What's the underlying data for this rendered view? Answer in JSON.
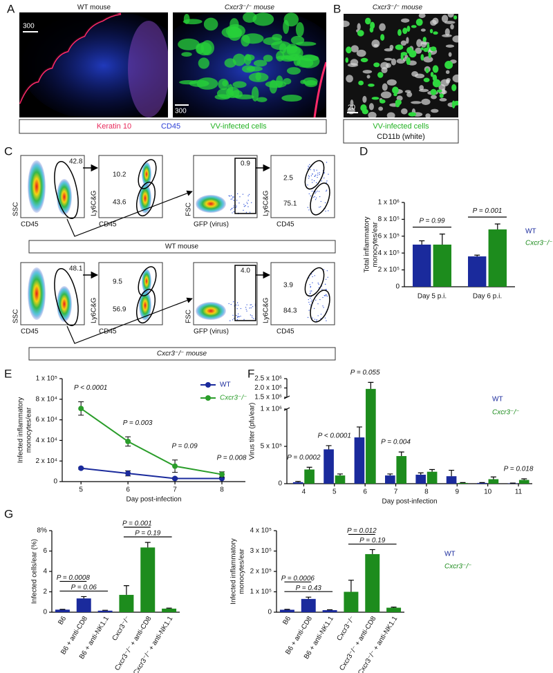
{
  "panel_labels": [
    "A",
    "B",
    "C",
    "D",
    "E",
    "F",
    "G"
  ],
  "panel_a": {
    "titles": [
      "WT mouse",
      "Cxcr3⁻/⁻ mouse"
    ],
    "scale_bars": [
      "300",
      "300"
    ],
    "legend": [
      "Keratin 10",
      "CD45",
      "VV-infected cells"
    ]
  },
  "panel_b": {
    "title": "Cxcr3⁻/⁻ mouse",
    "scale_bar": "20",
    "legend": [
      "VV-infected cells",
      "CD11b (white)"
    ]
  },
  "panel_c": {
    "axis_labels": {
      "ssc": "SSC",
      "cd45": "CD45",
      "ly6cg": "Ly6C&G",
      "fsc": "FSC",
      "gfp": "GFP (virus)"
    },
    "rows": [
      {
        "label": "WT mouse",
        "gates": [
          "42.8",
          "10.2",
          "43.6",
          "0.9",
          "2.5",
          "75.1"
        ]
      },
      {
        "label": "Cxcr3⁻/⁻ mouse",
        "gates": [
          "48.1",
          "9.5",
          "56.9",
          "4.0",
          "3.9",
          "84.3"
        ]
      }
    ]
  },
  "chart_data": [
    {
      "type": "bar",
      "categories": [
        "Day 5 p.i.",
        "Day 6 p.i."
      ],
      "ylabel": [
        "Total inflammatory",
        "monocytes/ear"
      ],
      "ylim": [
        0,
        1000000
      ],
      "yticks": [
        0,
        {
          "value": 200000,
          "label": "2 x 10⁵"
        },
        {
          "value": 400000,
          "label": "4 x 10⁵"
        },
        {
          "value": 600000,
          "label": "6 x 10⁵"
        },
        {
          "value": 800000,
          "label": "8 x 10⁵"
        },
        {
          "value": 1000000,
          "label": "1 x 10⁶"
        }
      ],
      "series": [
        {
          "name": "WT",
          "color": "#1a2a9c",
          "values": [
            500000,
            360000
          ],
          "errors": [
            45000,
            15000
          ]
        },
        {
          "name": "Cxcr3⁻/⁻",
          "color": "#1d8c1d",
          "values": [
            500000,
            680000
          ],
          "errors": [
            125000,
            65000
          ]
        }
      ],
      "annotations": [
        "P = 0.99",
        "P = 0.001"
      ],
      "brackets": true
    },
    {
      "type": "line",
      "x": [
        5,
        6,
        7,
        8
      ],
      "xlim": [
        4.6,
        8.5
      ],
      "xticks": [
        5,
        6,
        7,
        8
      ],
      "xlabel": "Day post-infection",
      "ylabel": [
        "Infected inflammatory",
        "monocytes/ear"
      ],
      "ylim": [
        0,
        100000
      ],
      "yticks": [
        0,
        {
          "value": 20000,
          "label": "2 x 10⁴"
        },
        {
          "value": 40000,
          "label": "4 x 10⁴"
        },
        {
          "value": 60000,
          "label": "6 x 10⁴"
        },
        {
          "value": 80000,
          "label": "8 x 10⁴"
        },
        {
          "value": 100000,
          "label": "1 x 10⁵"
        }
      ],
      "series": [
        {
          "name": "WT",
          "color": "#1a2a9c",
          "values": [
            13000,
            8000,
            3000,
            3000
          ],
          "errors": [
            1000,
            2500,
            1000,
            500
          ]
        },
        {
          "name": "Cxcr3⁻/⁻",
          "color": "#2a9d2a",
          "values": [
            71000,
            39000,
            15000,
            7000
          ],
          "errors": [
            6500,
            4500,
            6000,
            2500
          ]
        }
      ],
      "annotations": [
        "P < 0.0001",
        "P = 0.003",
        "P = 0.09",
        "P = 0.008"
      ]
    },
    {
      "type": "bar",
      "x": [
        4,
        5,
        6,
        7,
        8,
        9,
        10,
        11
      ],
      "xlim": [
        3.45,
        11.45
      ],
      "xticks": [
        4,
        5,
        6,
        7,
        8,
        9,
        10,
        11
      ],
      "xlabel": "Day post-infection",
      "ylabel": [
        "Virus titer (pfu/ear)"
      ],
      "ylim": [
        0,
        2500000
      ],
      "ybreak": [
        1000000,
        1500000
      ],
      "yticks": [
        0,
        {
          "value": 500000,
          "label": "5 x 10⁵"
        },
        {
          "value": 1000000,
          "label": "1 x 10⁶"
        },
        {
          "value": 1500000,
          "label": "1.5 x 10⁶"
        },
        {
          "value": 2000000,
          "label": "2.0 x 10⁶"
        },
        {
          "value": 2500000,
          "label": "2.5 x 10⁶"
        }
      ],
      "series": [
        {
          "name": "WT",
          "color": "#1a2a9c",
          "values": [
            20000,
            460000,
            620000,
            110000,
            120000,
            100000,
            10000,
            5000
          ],
          "errors": [
            10000,
            50000,
            140000,
            20000,
            25000,
            80000,
            5000,
            3000
          ]
        },
        {
          "name": "Cxcr3⁻/⁻",
          "color": "#1d8c1d",
          "values": [
            190000,
            110000,
            1950000,
            370000,
            160000,
            10000,
            60000,
            50000
          ],
          "errors": [
            30000,
            20000,
            350000,
            55000,
            30000,
            5000,
            30000,
            15000
          ]
        }
      ],
      "annotations": [
        "P = 0.0002",
        "P < 0.0001",
        "P = 0.055",
        "P = 0.004",
        null,
        null,
        null,
        "P = 0.018"
      ]
    },
    {
      "type": "bar",
      "categories": [
        "B6",
        "B6 + anti-CD8",
        "B6 + anti-NK1.1",
        "Cxcr3⁻/⁻",
        "Cxcr3⁻/⁻ + anti-CD8",
        "Cxcr3⁻/⁻ + anti-NK1.1"
      ],
      "ylabel": [
        "Infected cells/ear (%)"
      ],
      "ylim": [
        0,
        8
      ],
      "yticks": [
        0,
        2,
        4,
        6,
        {
          "value": 8,
          "label": "8%"
        }
      ],
      "values": [
        0.25,
        1.35,
        0.15,
        1.7,
        6.35,
        0.35
      ],
      "errors": [
        0.03,
        0.18,
        0.04,
        0.9,
        0.5,
        0.05
      ],
      "colors": [
        "#1a2a9c",
        "#1a2a9c",
        "#1a2a9c",
        "#1d8c1d",
        "#1d8c1d",
        "#1d8c1d"
      ],
      "comparisons": [
        {
          "label": "P = 0.0008",
          "between": [
            0,
            1
          ]
        },
        {
          "label": "P = 0.06",
          "between": [
            0,
            2
          ]
        },
        {
          "label": "P = 0.001",
          "between": [
            3,
            4
          ]
        },
        {
          "label": "P = 0.19",
          "between": [
            3,
            5
          ]
        }
      ]
    },
    {
      "type": "bar",
      "categories": [
        "B6",
        "B6 + anti-CD8",
        "B6 + anti-NK1.1",
        "Cxcr3⁻/⁻",
        "Cxcr3⁻/⁻ + anti-CD8",
        "Cxcr3⁻/⁻ + anti-NK1.1"
      ],
      "ylabel": [
        "Infected inflammatory",
        "monocytes/ear"
      ],
      "ylim": [
        0,
        400000
      ],
      "yticks": [
        0,
        {
          "value": 100000,
          "label": "1 x 10⁵"
        },
        {
          "value": 200000,
          "label": "2 x 10⁵"
        },
        {
          "value": 300000,
          "label": "3 x 10⁵"
        },
        {
          "value": 400000,
          "label": "4 x 10⁵"
        }
      ],
      "values": [
        12000,
        65000,
        10000,
        100000,
        285000,
        22000
      ],
      "errors": [
        2000,
        9000,
        2000,
        57000,
        22000,
        3000
      ],
      "colors": [
        "#1a2a9c",
        "#1a2a9c",
        "#1a2a9c",
        "#1d8c1d",
        "#1d8c1d",
        "#1d8c1d"
      ],
      "comparisons": [
        {
          "label": "P = 0.0006",
          "between": [
            0,
            1
          ]
        },
        {
          "label": "P = 0.43",
          "between": [
            0,
            2
          ]
        },
        {
          "label": "P = 0.012",
          "between": [
            3,
            4
          ]
        },
        {
          "label": "P = 0.19",
          "between": [
            3,
            5
          ]
        }
      ],
      "legend_entries": [
        {
          "name": "WT",
          "color": "#1a2a9c"
        },
        {
          "name": "Cxcr3⁻/⁻",
          "color": "#1d8c1d"
        }
      ]
    }
  ]
}
